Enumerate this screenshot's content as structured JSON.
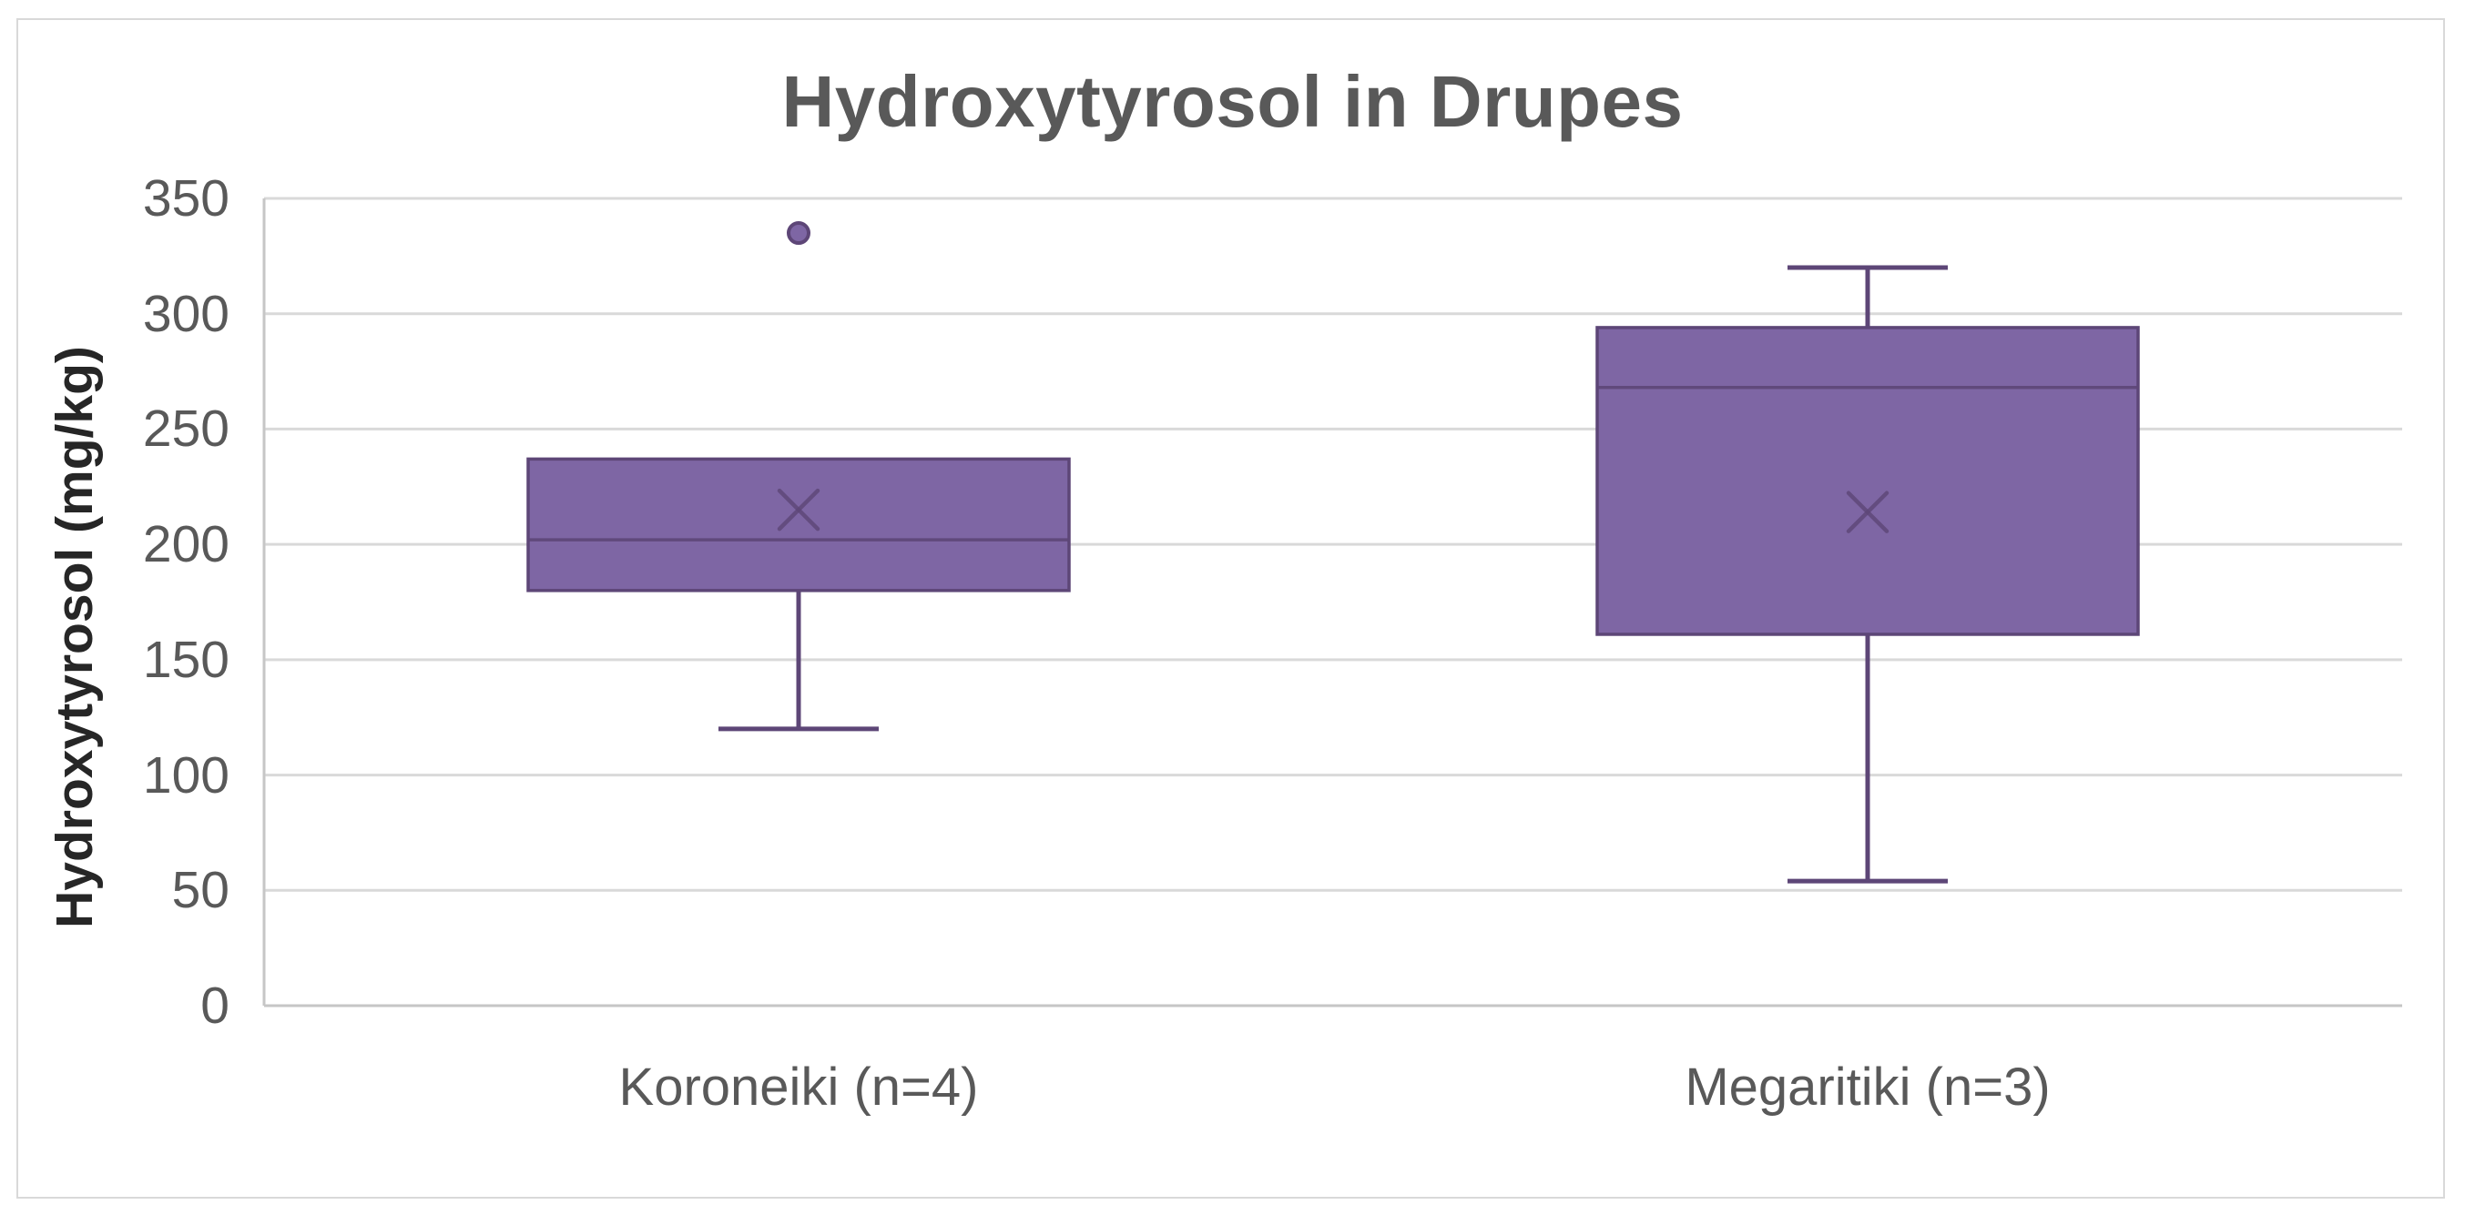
{
  "chart_data": {
    "type": "boxplot",
    "title": "Hydroxytyrosol in Drupes",
    "ylabel": "Hydroxytyrosol (mg/kg)",
    "xlabel": "",
    "ylim": [
      0,
      350
    ],
    "ytick_interval": 50,
    "ytick_labels": [
      "0",
      "50",
      "100",
      "150",
      "200",
      "250",
      "300",
      "350"
    ],
    "categories": [
      "Koroneiki (n=4)",
      "Megaritiki (n=3)"
    ],
    "series": [
      {
        "name": "Koroneiki (n=4)",
        "whisker_low": 120,
        "q1": 180,
        "median": 202,
        "q3": 237,
        "whisker_high": null,
        "mean": 215,
        "outliers": [
          335
        ]
      },
      {
        "name": "Megaritiki (n=3)",
        "whisker_low": 54,
        "q1": 161,
        "median": 268,
        "q3": 294,
        "whisker_high": 320,
        "mean": 214,
        "outliers": []
      }
    ],
    "grid": "horizontal",
    "legend": null,
    "colors": {
      "box_fill": "#7E66A4",
      "box_border": "#5D4677",
      "gridline": "#D9D9D9",
      "axis_line": "#C6C6C6",
      "frame": "#D9D9D9",
      "text_gray": "#595959",
      "text_black": "#262626",
      "bg": "#FFFFFF"
    }
  }
}
